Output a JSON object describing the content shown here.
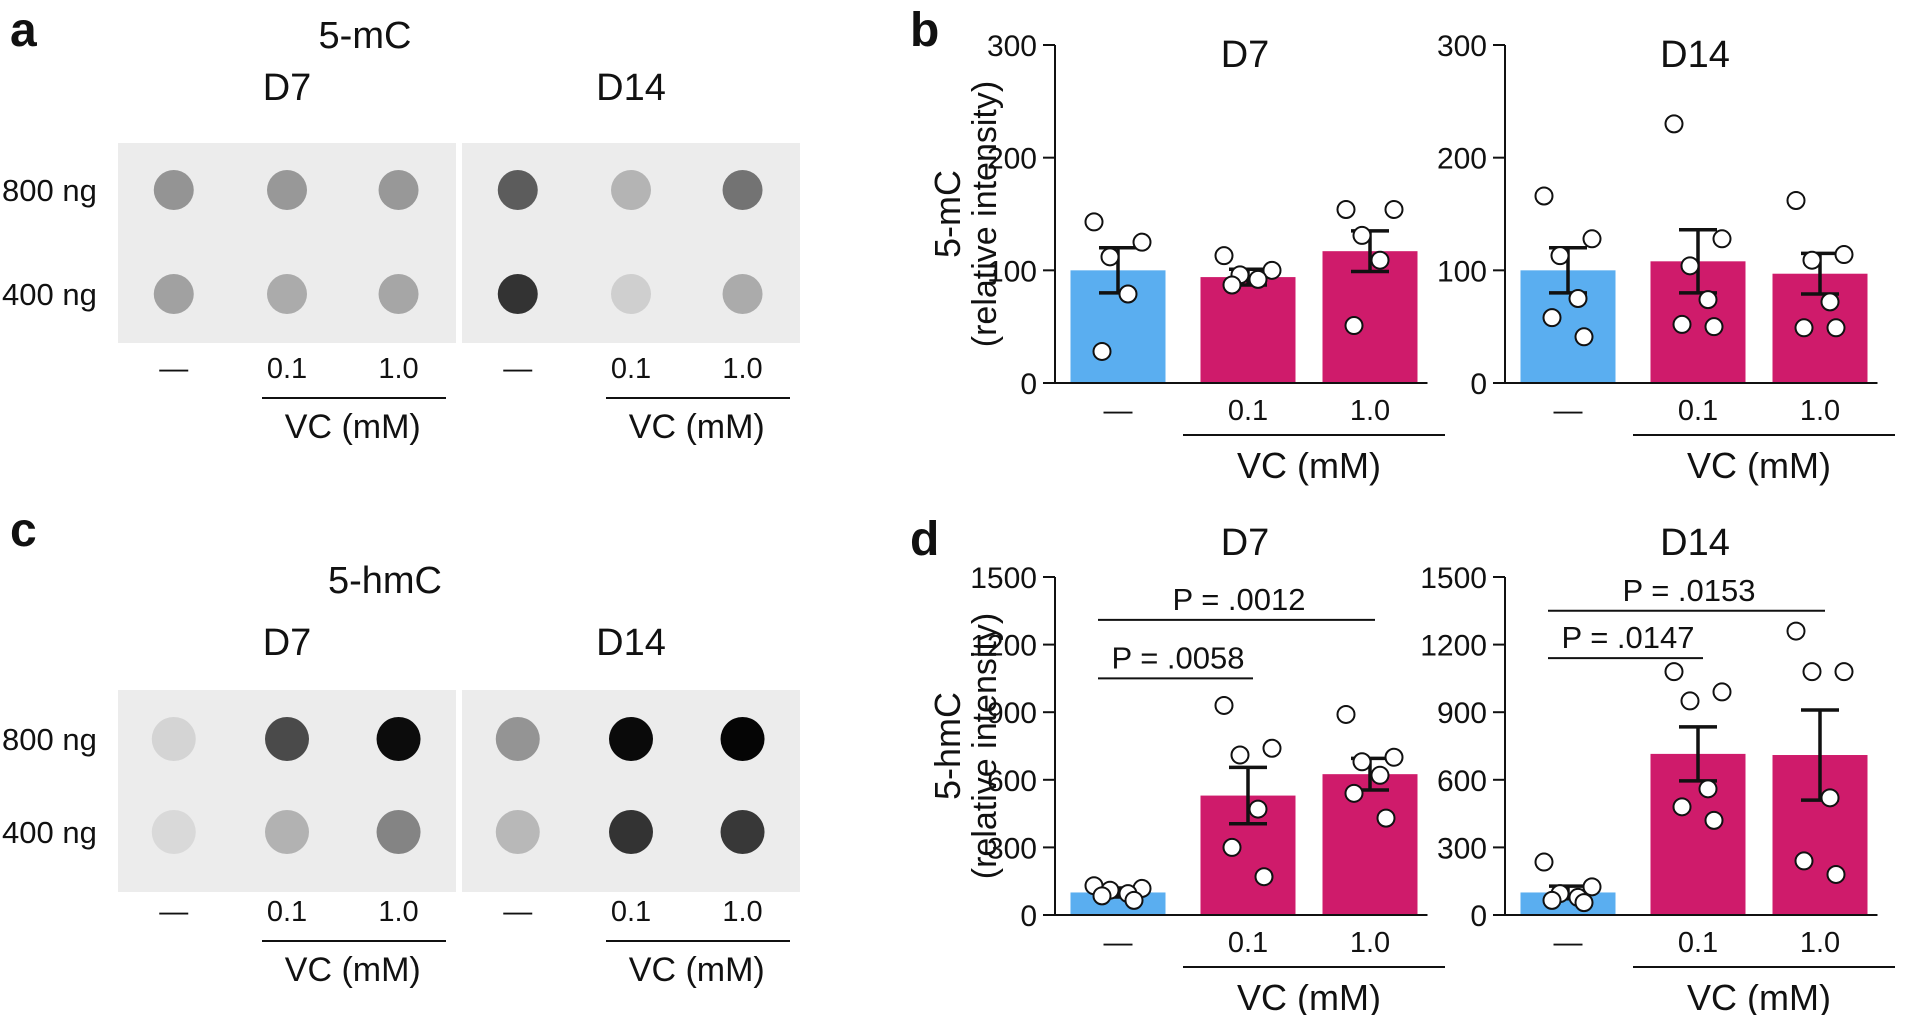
{
  "colors": {
    "control": "#5aaef0",
    "treated": "#cf1b6b",
    "axis": "#111111"
  },
  "panel_a": {
    "letter": "a",
    "title": "5-mC",
    "blots": [
      {
        "label": "D7"
      },
      {
        "label": "D14"
      }
    ],
    "row_labels": [
      "800 ng",
      "400 ng"
    ],
    "lane_labels": [
      "—",
      "0.1",
      "1.0"
    ],
    "group_label": "VC (mM)",
    "spot_darkness": [
      [
        [
          0.38,
          0.36,
          0.36
        ],
        [
          0.32,
          0.28,
          0.3
        ]
      ],
      [
        [
          0.62,
          0.24,
          0.52
        ],
        [
          0.8,
          0.12,
          0.28
        ]
      ]
    ]
  },
  "panel_c": {
    "letter": "c",
    "title": "5-hmC",
    "blots": [
      {
        "label": "D7"
      },
      {
        "label": "D14"
      }
    ],
    "row_labels": [
      "800 ng",
      "400 ng"
    ],
    "lane_labels": [
      "—",
      "0.1",
      "1.0"
    ],
    "group_label": "VC (mM)",
    "spot_darkness": [
      [
        [
          0.1,
          0.7,
          0.97
        ],
        [
          0.08,
          0.25,
          0.45
        ]
      ],
      [
        [
          0.38,
          0.98,
          1.0
        ],
        [
          0.22,
          0.8,
          0.78
        ]
      ]
    ]
  },
  "chart_data": [
    {
      "panel": "b",
      "letter": "b",
      "type": "bar",
      "title": "D7",
      "ylabel": [
        "5-mC",
        "(relative intensity)"
      ],
      "categories": [
        "—",
        "0.1",
        "1.0"
      ],
      "group_label": "VC (mM)",
      "ylim": [
        0,
        300
      ],
      "yticks": [
        0,
        100,
        200,
        300
      ],
      "values": [
        100,
        94,
        117
      ],
      "error": [
        20,
        7,
        18
      ],
      "points": [
        [
          143,
          125,
          112,
          79,
          28
        ],
        [
          113,
          100,
          96,
          92,
          87
        ],
        [
          154,
          154,
          131,
          109,
          51
        ]
      ],
      "comparisons": []
    },
    {
      "panel": "b",
      "type": "bar",
      "title": "D14",
      "categories": [
        "—",
        "0.1",
        "1.0"
      ],
      "group_label": "VC (mM)",
      "ylim": [
        0,
        300
      ],
      "yticks": [
        0,
        100,
        200,
        300
      ],
      "values": [
        100,
        108,
        97
      ],
      "error": [
        20,
        28,
        18
      ],
      "points": [
        [
          166,
          128,
          113,
          75,
          58,
          41
        ],
        [
          230,
          128,
          104,
          74,
          52,
          50
        ],
        [
          162,
          114,
          109,
          72,
          49,
          49
        ]
      ],
      "comparisons": []
    },
    {
      "panel": "d",
      "letter": "d",
      "type": "bar",
      "title": "D7",
      "ylabel": [
        "5-hmC",
        "(relative intensity)"
      ],
      "categories": [
        "—",
        "0.1",
        "1.0"
      ],
      "group_label": "VC (mM)",
      "ylim": [
        0,
        1500
      ],
      "yticks": [
        0,
        300,
        600,
        900,
        1200,
        1500
      ],
      "values": [
        100,
        530,
        625
      ],
      "error": [
        20,
        125,
        70
      ],
      "points": [
        [
          130,
          118,
          110,
          95,
          85,
          65
        ],
        [
          930,
          740,
          710,
          470,
          300,
          170
        ],
        [
          890,
          700,
          680,
          620,
          540,
          430
        ]
      ],
      "comparisons": [
        {
          "label": "P = .0012",
          "from": 0,
          "to": 2,
          "y": 1310
        },
        {
          "label": "P = .0058",
          "from": 0,
          "to": 1,
          "y": 1050
        }
      ]
    },
    {
      "panel": "d",
      "type": "bar",
      "title": "D14",
      "categories": [
        "—",
        "0.1",
        "1.0"
      ],
      "group_label": "VC (mM)",
      "ylim": [
        0,
        1500
      ],
      "yticks": [
        0,
        300,
        600,
        900,
        1200,
        1500
      ],
      "values": [
        100,
        715,
        710
      ],
      "error": [
        28,
        120,
        200
      ],
      "points": [
        [
          235,
          125,
          95,
          78,
          65,
          55
        ],
        [
          1080,
          990,
          950,
          560,
          480,
          420
        ],
        [
          1260,
          1080,
          1080,
          520,
          240,
          180
        ]
      ],
      "comparisons": [
        {
          "label": "P = .0153",
          "from": 0,
          "to": 2,
          "y": 1350
        },
        {
          "label": "P = .0147",
          "from": 0,
          "to": 1,
          "y": 1140
        }
      ]
    }
  ]
}
